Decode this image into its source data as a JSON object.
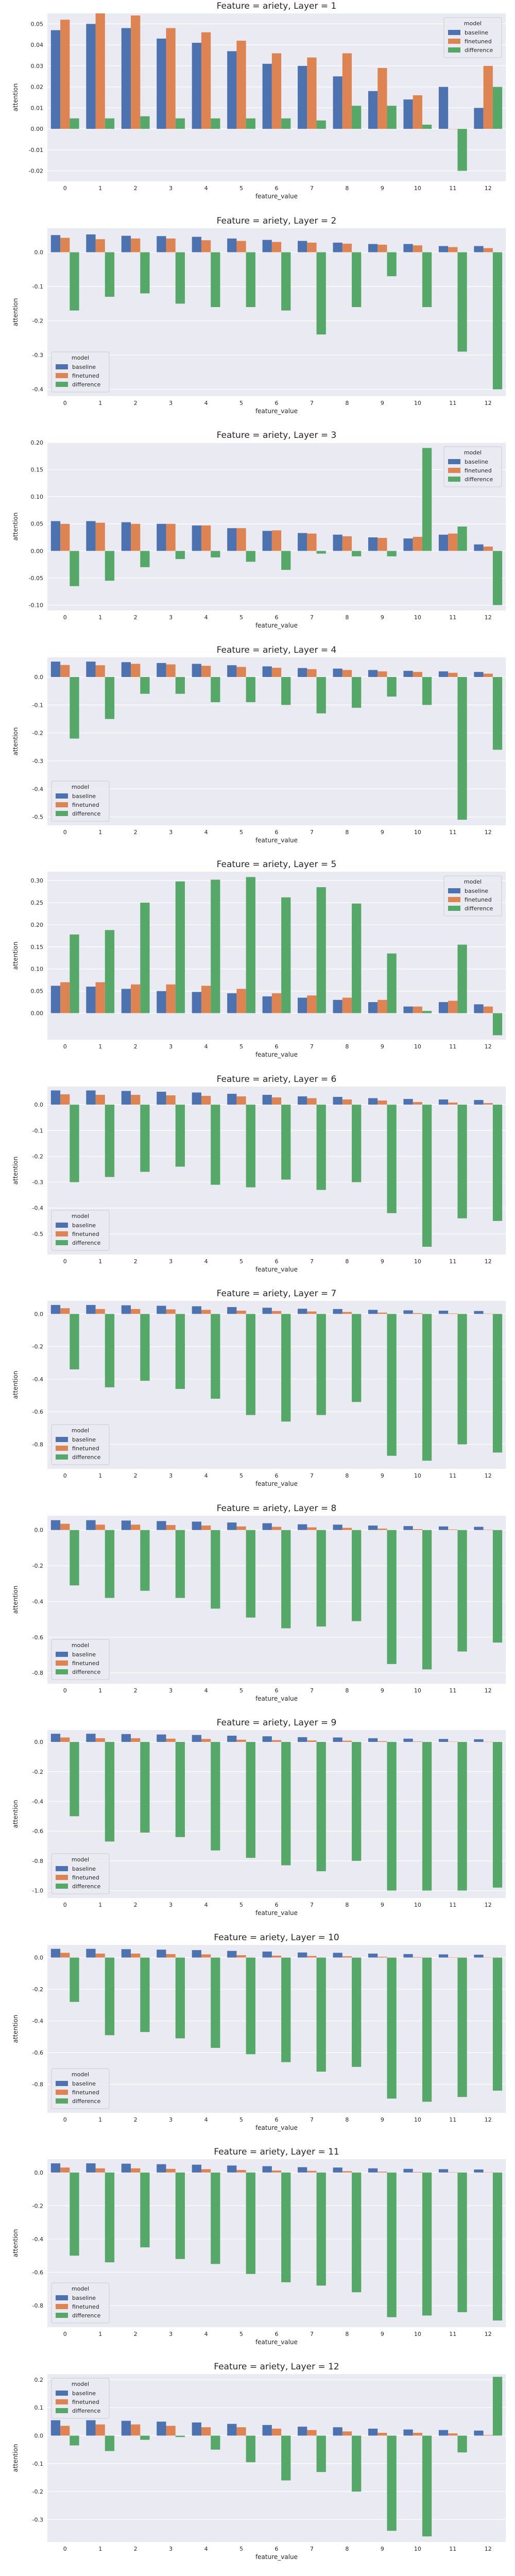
{
  "colors": {
    "baseline": "#4c72b0",
    "finetuned": "#dd8452",
    "difference": "#55a868",
    "plot_bg": "#eaeaf2",
    "grid": "#ffffff"
  },
  "chart_data": [
    {
      "type": "bar",
      "title": "Feature = ariety, Layer = 1",
      "xlabel": "feature_value",
      "ylabel": "attention",
      "categories": [
        "0",
        "1",
        "2",
        "3",
        "4",
        "5",
        "6",
        "7",
        "8",
        "9",
        "10",
        "11",
        "12"
      ],
      "ylim": [
        -0.025,
        0.055
      ],
      "yticks": [
        -0.02,
        -0.01,
        0.0,
        0.01,
        0.02,
        0.03,
        0.04,
        0.05
      ],
      "legend_title": "model",
      "legend_position": "top-right",
      "series": [
        {
          "name": "baseline",
          "values": [
            0.047,
            0.05,
            0.048,
            0.043,
            0.041,
            0.037,
            0.031,
            0.03,
            0.025,
            0.018,
            0.014,
            0.02,
            0.01
          ]
        },
        {
          "name": "finetuned",
          "values": [
            0.052,
            0.055,
            0.054,
            0.048,
            0.046,
            0.042,
            0.036,
            0.034,
            0.036,
            0.029,
            0.016,
            0.0,
            0.03
          ]
        },
        {
          "name": "difference",
          "values": [
            0.005,
            0.005,
            0.006,
            0.005,
            0.005,
            0.005,
            0.005,
            0.004,
            0.011,
            0.011,
            0.002,
            -0.02,
            0.02
          ]
        }
      ]
    },
    {
      "type": "bar",
      "title": "Feature = ariety, Layer = 2",
      "xlabel": "feature_value",
      "ylabel": "attention",
      "categories": [
        "0",
        "1",
        "2",
        "3",
        "4",
        "5",
        "6",
        "7",
        "8",
        "9",
        "10",
        "11",
        "12"
      ],
      "ylim": [
        -0.42,
        0.07
      ],
      "yticks": [
        -0.4,
        -0.3,
        -0.2,
        -0.1,
        0.0
      ],
      "legend_title": "model",
      "legend_position": "bottom-left",
      "series": [
        {
          "name": "baseline",
          "values": [
            0.05,
            0.052,
            0.048,
            0.047,
            0.045,
            0.04,
            0.036,
            0.033,
            0.028,
            0.024,
            0.024,
            0.018,
            0.018
          ]
        },
        {
          "name": "finetuned",
          "values": [
            0.042,
            0.038,
            0.04,
            0.04,
            0.035,
            0.033,
            0.03,
            0.028,
            0.025,
            0.022,
            0.02,
            0.015,
            0.012
          ]
        },
        {
          "name": "difference",
          "values": [
            -0.17,
            -0.13,
            -0.12,
            -0.15,
            -0.16,
            -0.16,
            -0.17,
            -0.24,
            -0.16,
            -0.07,
            -0.16,
            -0.29,
            -0.4
          ]
        }
      ]
    },
    {
      "type": "bar",
      "title": "Feature = ariety, Layer = 3",
      "xlabel": "feature_value",
      "ylabel": "attention",
      "categories": [
        "0",
        "1",
        "2",
        "3",
        "4",
        "5",
        "6",
        "7",
        "8",
        "9",
        "10",
        "11",
        "12"
      ],
      "ylim": [
        -0.11,
        0.2
      ],
      "yticks": [
        -0.1,
        -0.05,
        0.0,
        0.05,
        0.1,
        0.15,
        0.2
      ],
      "legend_title": "model",
      "legend_position": "top-right",
      "series": [
        {
          "name": "baseline",
          "values": [
            0.055,
            0.055,
            0.053,
            0.05,
            0.047,
            0.042,
            0.037,
            0.033,
            0.03,
            0.025,
            0.023,
            0.03,
            0.012
          ]
        },
        {
          "name": "finetuned",
          "values": [
            0.05,
            0.052,
            0.05,
            0.05,
            0.047,
            0.042,
            0.038,
            0.032,
            0.027,
            0.024,
            0.026,
            0.032,
            0.008
          ]
        },
        {
          "name": "difference",
          "values": [
            -0.065,
            -0.055,
            -0.03,
            -0.015,
            -0.012,
            -0.02,
            -0.035,
            -0.005,
            -0.01,
            -0.01,
            0.19,
            0.045,
            -0.1
          ]
        }
      ]
    },
    {
      "type": "bar",
      "title": "Feature = ariety, Layer = 4",
      "xlabel": "feature_value",
      "ylabel": "attention",
      "categories": [
        "0",
        "1",
        "2",
        "3",
        "4",
        "5",
        "6",
        "7",
        "8",
        "9",
        "10",
        "11",
        "12"
      ],
      "ylim": [
        -0.53,
        0.07
      ],
      "yticks": [
        -0.5,
        -0.4,
        -0.3,
        -0.2,
        -0.1,
        0.0
      ],
      "legend_title": "model",
      "legend_position": "bottom-left",
      "series": [
        {
          "name": "baseline",
          "values": [
            0.055,
            0.055,
            0.053,
            0.05,
            0.047,
            0.042,
            0.038,
            0.032,
            0.03,
            0.025,
            0.022,
            0.02,
            0.018
          ]
        },
        {
          "name": "finetuned",
          "values": [
            0.043,
            0.042,
            0.047,
            0.045,
            0.04,
            0.036,
            0.033,
            0.028,
            0.025,
            0.02,
            0.018,
            0.015,
            0.012
          ]
        },
        {
          "name": "difference",
          "values": [
            -0.22,
            -0.15,
            -0.06,
            -0.06,
            -0.09,
            -0.09,
            -0.1,
            -0.13,
            -0.11,
            -0.07,
            -0.1,
            -0.51,
            -0.26
          ]
        }
      ]
    },
    {
      "type": "bar",
      "title": "Feature = ariety, Layer = 5",
      "xlabel": "feature_value",
      "ylabel": "attention",
      "categories": [
        "0",
        "1",
        "2",
        "3",
        "4",
        "5",
        "6",
        "7",
        "8",
        "9",
        "10",
        "11",
        "12"
      ],
      "ylim": [
        -0.06,
        0.32
      ],
      "yticks": [
        0.0,
        0.05,
        0.1,
        0.15,
        0.2,
        0.25,
        0.3
      ],
      "legend_title": "model",
      "legend_position": "top-right",
      "series": [
        {
          "name": "baseline",
          "values": [
            0.062,
            0.06,
            0.055,
            0.05,
            0.048,
            0.045,
            0.038,
            0.035,
            0.03,
            0.025,
            0.015,
            0.025,
            0.02
          ]
        },
        {
          "name": "finetuned",
          "values": [
            0.07,
            0.07,
            0.065,
            0.065,
            0.062,
            0.055,
            0.045,
            0.04,
            0.035,
            0.03,
            0.015,
            0.028,
            0.015
          ]
        },
        {
          "name": "difference",
          "values": [
            0.178,
            0.188,
            0.25,
            0.298,
            0.302,
            0.308,
            0.262,
            0.285,
            0.248,
            0.135,
            0.005,
            0.155,
            -0.05
          ]
        }
      ]
    },
    {
      "type": "bar",
      "title": "Feature = ariety, Layer = 6",
      "xlabel": "feature_value",
      "ylabel": "attention",
      "categories": [
        "0",
        "1",
        "2",
        "3",
        "4",
        "5",
        "6",
        "7",
        "8",
        "9",
        "10",
        "11",
        "12"
      ],
      "ylim": [
        -0.58,
        0.07
      ],
      "yticks": [
        -0.5,
        -0.4,
        -0.3,
        -0.2,
        -0.1,
        0.0
      ],
      "legend_title": "model",
      "legend_position": "bottom-left",
      "series": [
        {
          "name": "baseline",
          "values": [
            0.055,
            0.055,
            0.053,
            0.05,
            0.047,
            0.042,
            0.038,
            0.032,
            0.03,
            0.025,
            0.022,
            0.02,
            0.018
          ]
        },
        {
          "name": "finetuned",
          "values": [
            0.04,
            0.038,
            0.038,
            0.036,
            0.034,
            0.032,
            0.028,
            0.025,
            0.02,
            0.016,
            0.01,
            0.008,
            0.006
          ]
        },
        {
          "name": "difference",
          "values": [
            -0.3,
            -0.28,
            -0.26,
            -0.24,
            -0.31,
            -0.32,
            -0.29,
            -0.33,
            -0.3,
            -0.42,
            -0.55,
            -0.44,
            -0.45
          ]
        }
      ]
    },
    {
      "type": "bar",
      "title": "Feature = ariety, Layer = 7",
      "xlabel": "feature_value",
      "ylabel": "attention",
      "categories": [
        "0",
        "1",
        "2",
        "3",
        "4",
        "5",
        "6",
        "7",
        "8",
        "9",
        "10",
        "11",
        "12"
      ],
      "ylim": [
        -0.95,
        0.08
      ],
      "yticks": [
        -0.8,
        -0.6,
        -0.4,
        -0.2,
        0.0
      ],
      "legend_title": "model",
      "legend_position": "bottom-left",
      "series": [
        {
          "name": "baseline",
          "values": [
            0.055,
            0.055,
            0.053,
            0.05,
            0.047,
            0.042,
            0.038,
            0.032,
            0.03,
            0.025,
            0.022,
            0.02,
            0.018
          ]
        },
        {
          "name": "finetuned",
          "values": [
            0.035,
            0.03,
            0.03,
            0.028,
            0.025,
            0.02,
            0.018,
            0.015,
            0.012,
            0.008,
            0.005,
            0.003,
            0.002
          ]
        },
        {
          "name": "difference",
          "values": [
            -0.34,
            -0.45,
            -0.41,
            -0.46,
            -0.52,
            -0.62,
            -0.66,
            -0.62,
            -0.54,
            -0.87,
            -0.9,
            -0.8,
            -0.85
          ]
        }
      ]
    },
    {
      "type": "bar",
      "title": "Feature = ariety, Layer = 8",
      "xlabel": "feature_value",
      "ylabel": "attention",
      "categories": [
        "0",
        "1",
        "2",
        "3",
        "4",
        "5",
        "6",
        "7",
        "8",
        "9",
        "10",
        "11",
        "12"
      ],
      "ylim": [
        -0.86,
        0.08
      ],
      "yticks": [
        -0.8,
        -0.6,
        -0.4,
        -0.2,
        0.0
      ],
      "legend_title": "model",
      "legend_position": "bottom-left",
      "series": [
        {
          "name": "baseline",
          "values": [
            0.055,
            0.055,
            0.053,
            0.05,
            0.047,
            0.042,
            0.038,
            0.032,
            0.03,
            0.025,
            0.022,
            0.02,
            0.018
          ]
        },
        {
          "name": "finetuned",
          "values": [
            0.035,
            0.03,
            0.03,
            0.028,
            0.025,
            0.02,
            0.018,
            0.015,
            0.012,
            0.008,
            0.005,
            0.003,
            0.002
          ]
        },
        {
          "name": "difference",
          "values": [
            -0.31,
            -0.38,
            -0.34,
            -0.38,
            -0.44,
            -0.49,
            -0.55,
            -0.54,
            -0.51,
            -0.75,
            -0.78,
            -0.68,
            -0.63
          ]
        }
      ]
    },
    {
      "type": "bar",
      "title": "Feature = ariety, Layer = 9",
      "xlabel": "feature_value",
      "ylabel": "attention",
      "categories": [
        "0",
        "1",
        "2",
        "3",
        "4",
        "5",
        "6",
        "7",
        "8",
        "9",
        "10",
        "11",
        "12"
      ],
      "ylim": [
        -1.05,
        0.08
      ],
      "yticks": [
        -1.0,
        -0.8,
        -0.6,
        -0.4,
        -0.2,
        0.0
      ],
      "legend_title": "model",
      "legend_position": "bottom-left",
      "series": [
        {
          "name": "baseline",
          "values": [
            0.055,
            0.055,
            0.053,
            0.05,
            0.047,
            0.042,
            0.038,
            0.032,
            0.03,
            0.025,
            0.022,
            0.02,
            0.018
          ]
        },
        {
          "name": "finetuned",
          "values": [
            0.03,
            0.025,
            0.025,
            0.022,
            0.02,
            0.015,
            0.012,
            0.01,
            0.008,
            0.005,
            0.003,
            0.002,
            0.001
          ]
        },
        {
          "name": "difference",
          "values": [
            -0.5,
            -0.67,
            -0.61,
            -0.64,
            -0.73,
            -0.78,
            -0.83,
            -0.87,
            -0.8,
            -1.0,
            -1.0,
            -1.0,
            -0.98
          ]
        }
      ]
    },
    {
      "type": "bar",
      "title": "Feature = ariety, Layer = 10",
      "xlabel": "feature_value",
      "ylabel": "attention",
      "categories": [
        "0",
        "1",
        "2",
        "3",
        "4",
        "5",
        "6",
        "7",
        "8",
        "9",
        "10",
        "11",
        "12"
      ],
      "ylim": [
        -0.98,
        0.08
      ],
      "yticks": [
        -0.8,
        -0.6,
        -0.4,
        -0.2,
        0.0
      ],
      "legend_title": "model",
      "legend_position": "bottom-left",
      "series": [
        {
          "name": "baseline",
          "values": [
            0.055,
            0.055,
            0.053,
            0.05,
            0.047,
            0.042,
            0.038,
            0.032,
            0.03,
            0.025,
            0.022,
            0.02,
            0.018
          ]
        },
        {
          "name": "finetuned",
          "values": [
            0.03,
            0.025,
            0.025,
            0.022,
            0.02,
            0.015,
            0.012,
            0.01,
            0.008,
            0.005,
            0.003,
            0.002,
            0.001
          ]
        },
        {
          "name": "difference",
          "values": [
            -0.28,
            -0.49,
            -0.47,
            -0.51,
            -0.57,
            -0.61,
            -0.66,
            -0.72,
            -0.69,
            -0.89,
            -0.91,
            -0.88,
            -0.84
          ]
        }
      ]
    },
    {
      "type": "bar",
      "title": "Feature = ariety, Layer = 11",
      "xlabel": "feature_value",
      "ylabel": "attention",
      "categories": [
        "0",
        "1",
        "2",
        "3",
        "4",
        "5",
        "6",
        "7",
        "8",
        "9",
        "10",
        "11",
        "12"
      ],
      "ylim": [
        -0.93,
        0.08
      ],
      "yticks": [
        -0.8,
        -0.6,
        -0.4,
        -0.2,
        0.0
      ],
      "legend_title": "model",
      "legend_position": "bottom-left",
      "series": [
        {
          "name": "baseline",
          "values": [
            0.055,
            0.055,
            0.053,
            0.05,
            0.047,
            0.042,
            0.038,
            0.032,
            0.03,
            0.025,
            0.022,
            0.02,
            0.018
          ]
        },
        {
          "name": "finetuned",
          "values": [
            0.03,
            0.025,
            0.025,
            0.022,
            0.02,
            0.015,
            0.012,
            0.01,
            0.008,
            0.005,
            0.003,
            0.002,
            0.001
          ]
        },
        {
          "name": "difference",
          "values": [
            -0.5,
            -0.54,
            -0.45,
            -0.52,
            -0.55,
            -0.61,
            -0.66,
            -0.68,
            -0.72,
            -0.87,
            -0.86,
            -0.84,
            -0.89
          ]
        }
      ]
    },
    {
      "type": "bar",
      "title": "Feature = ariety, Layer = 12",
      "xlabel": "feature_value",
      "ylabel": "attention",
      "categories": [
        "0",
        "1",
        "2",
        "3",
        "4",
        "5",
        "6",
        "7",
        "8",
        "9",
        "10",
        "11",
        "12"
      ],
      "ylim": [
        -0.38,
        0.22
      ],
      "yticks": [
        -0.3,
        -0.2,
        -0.1,
        0.0,
        0.1,
        0.2
      ],
      "legend_title": "model",
      "legend_position": "top-left",
      "series": [
        {
          "name": "baseline",
          "values": [
            0.055,
            0.055,
            0.053,
            0.05,
            0.047,
            0.042,
            0.038,
            0.032,
            0.03,
            0.025,
            0.022,
            0.02,
            0.018
          ]
        },
        {
          "name": "finetuned",
          "values": [
            0.035,
            0.04,
            0.04,
            0.035,
            0.03,
            0.03,
            0.025,
            0.02,
            0.015,
            0.01,
            0.01,
            0.008,
            0.002
          ]
        },
        {
          "name": "difference",
          "values": [
            -0.035,
            -0.055,
            -0.015,
            -0.005,
            -0.05,
            -0.095,
            -0.16,
            -0.13,
            -0.2,
            -0.34,
            -0.36,
            -0.06,
            0.21
          ]
        }
      ]
    }
  ]
}
